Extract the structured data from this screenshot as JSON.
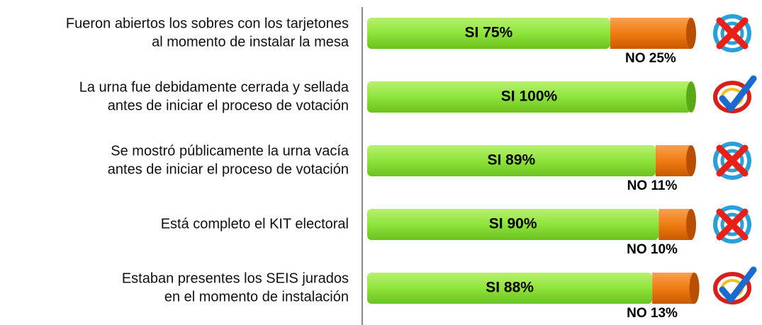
{
  "chart_data": {
    "type": "stacked-bar",
    "orientation": "horizontal",
    "categories": [
      [
        "Fueron abiertos los sobres con los tarjetones",
        "al momento de instalar la mesa"
      ],
      [
        "La urna fue debidamente cerrada y sellada",
        "antes de iniciar el proceso de votación"
      ],
      [
        "Se mostró públicamente la urna vacía",
        "antes de iniciar el proceso de votación"
      ],
      [
        "Está completo el KIT electoral"
      ],
      [
        "Estaban presentes los SEIS jurados",
        "en el momento de instalación"
      ]
    ],
    "series": [
      {
        "name": "SI",
        "color": "#8ee43a",
        "values": [
          75,
          100,
          89,
          90,
          88
        ],
        "value_labels": [
          "SI 75%",
          "SI 100%",
          "SI 89%",
          "SI 90%",
          "SI 88%"
        ]
      },
      {
        "name": "NO",
        "color": "#f07c12",
        "values": [
          25,
          null,
          11,
          10,
          13
        ],
        "value_labels": [
          "NO 25%",
          null,
          "NO 11%",
          "NO 10%",
          "NO 13%"
        ]
      }
    ],
    "xlim": [
      0,
      100
    ]
  }
}
